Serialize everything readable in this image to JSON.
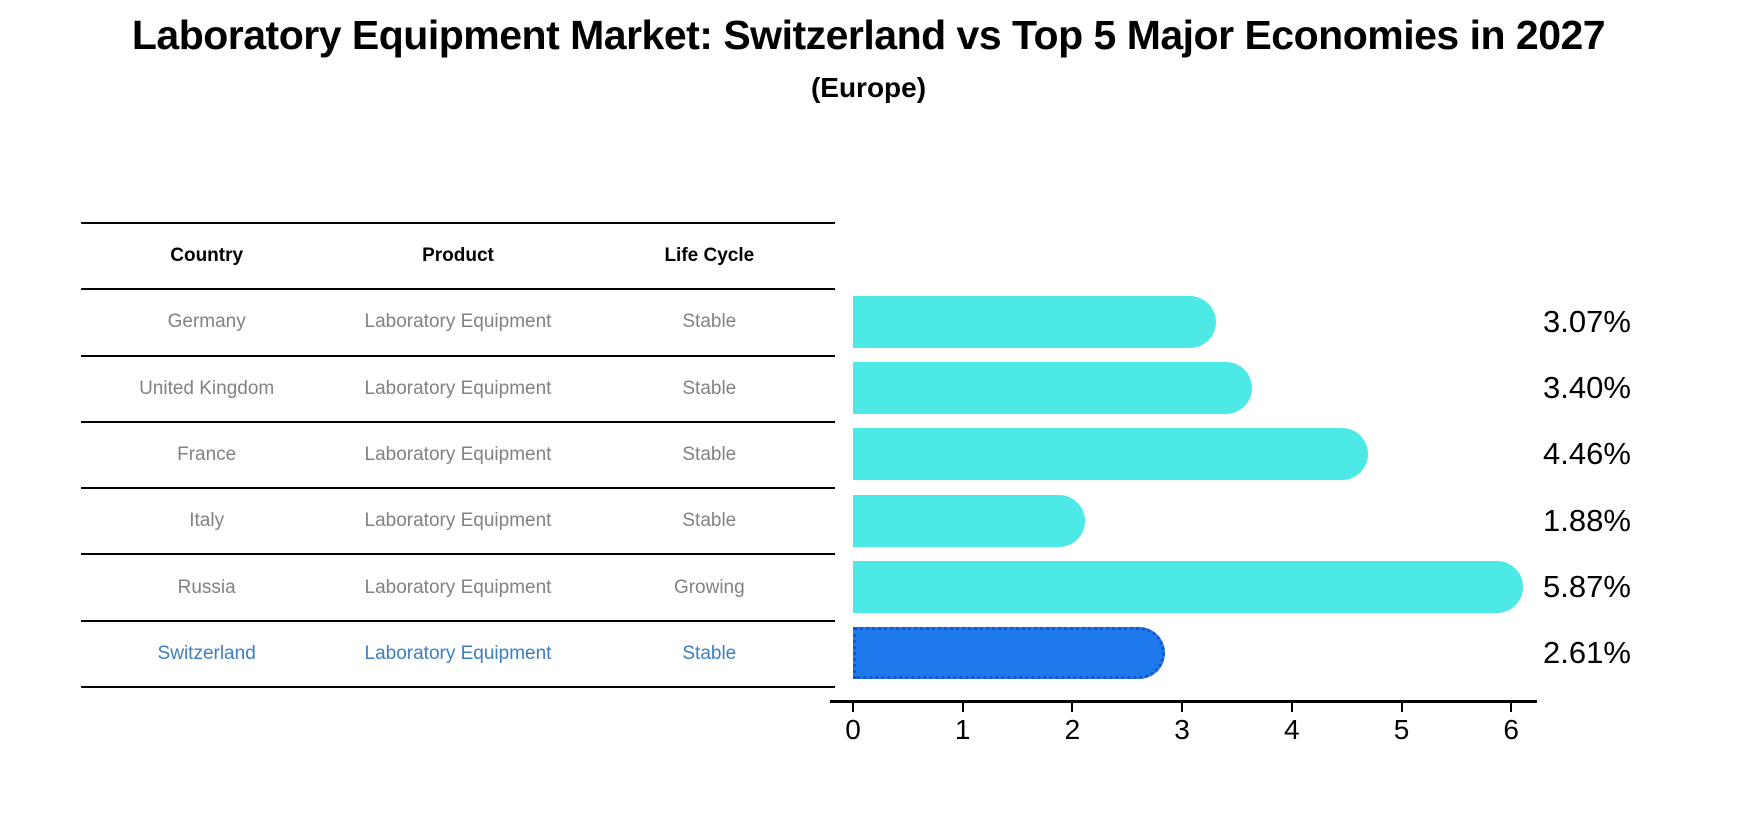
{
  "title": "Laboratory Equipment Market: Switzerland vs Top 5 Major Economies in 2027",
  "subtitle": "(Europe)",
  "table": {
    "columns": [
      "Country",
      "Product",
      "Life Cycle"
    ],
    "rows": [
      {
        "country": "Germany",
        "product": "Laboratory Equipment",
        "life_cycle": "Stable",
        "highlight": false
      },
      {
        "country": "United Kingdom",
        "product": "Laboratory Equipment",
        "life_cycle": "Stable",
        "highlight": false
      },
      {
        "country": "France",
        "product": "Laboratory Equipment",
        "life_cycle": "Stable",
        "highlight": false
      },
      {
        "country": "Italy",
        "product": "Laboratory Equipment",
        "life_cycle": "Stable",
        "highlight": false
      },
      {
        "country": "Russia",
        "product": "Laboratory Equipment",
        "life_cycle": "Growing",
        "highlight": false
      },
      {
        "country": "Switzerland",
        "product": "Laboratory Equipment",
        "life_cycle": "Stable",
        "highlight": true
      }
    ]
  },
  "chart_data": {
    "type": "bar",
    "orientation": "horizontal",
    "title": "Laboratory Equipment Market: Switzerland vs Top 5 Major Economies in 2027",
    "subtitle": "(Europe)",
    "categories": [
      "Germany",
      "United Kingdom",
      "France",
      "Italy",
      "Russia",
      "Switzerland"
    ],
    "values": [
      3.07,
      3.4,
      4.46,
      1.88,
      5.87,
      2.61
    ],
    "value_labels": [
      "3.07%",
      "3.40%",
      "4.46%",
      "1.88%",
      "5.87%",
      "2.61%"
    ],
    "xlabel": "",
    "ylabel": "",
    "xlim": [
      0,
      6
    ],
    "xticks": [
      "0",
      "1",
      "2",
      "3",
      "4",
      "5",
      "6"
    ],
    "grid": false,
    "legend": false,
    "bar_color": "#4DE9E6",
    "highlight_color": "#1E79EC",
    "highlight_index": 5
  },
  "colors": {
    "background": "#ffffff",
    "table_line": "#000000",
    "row_text": "#828282",
    "highlight_row_text": "#3d7ec2",
    "bar_cyan": "#4DE9E6",
    "bar_blue": "#1E79EC",
    "bar_blue_border": "#1656C8",
    "axis": "#000000"
  }
}
